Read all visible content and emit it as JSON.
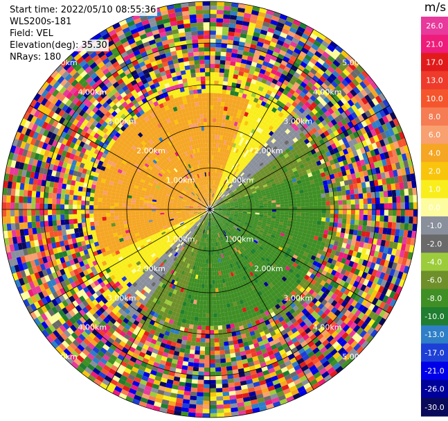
{
  "info": {
    "start_time": "Start time: 2022/05/10 08:55:36",
    "instrument": "WLS200s-181",
    "field": "Field: VEL",
    "elevation": "Elevation(deg): 35.30",
    "nrays": "NRays: 180"
  },
  "chart_data": {
    "type": "heatmap",
    "projection": "polar-ppi",
    "field": "VEL",
    "units": "m/s",
    "range_rings_km": [
      1.0,
      2.0,
      3.0,
      4.0,
      5.0
    ],
    "ring_labels": [
      "1.00km",
      "2.00km",
      "3.00km",
      "4.00km",
      "5.00km"
    ],
    "max_range_km": 5.0,
    "spoke_angles_deg": [
      0,
      30,
      60,
      90,
      120,
      150,
      180,
      210,
      240,
      270,
      300,
      330
    ],
    "nrays": 180,
    "colorbar": {
      "ticks": [
        "26.0",
        "21.0",
        "17.0",
        "13.0",
        "10.0",
        "8.0",
        "6.0",
        "4.0",
        "2.0",
        "1.0",
        "0.0",
        "-1.0",
        "-2.0",
        "-4.0",
        "-6.0",
        "-8.0",
        "-10.0",
        "-13.0",
        "-17.0",
        "-21.0",
        "-26.0",
        "-30.0"
      ],
      "colors": [
        "#e8399c",
        "#ee1c7a",
        "#e11b1b",
        "#ee3b2c",
        "#f5552d",
        "#f67c54",
        "#f8a070",
        "#f5a623",
        "#f9c40c",
        "#f9ee1c",
        "#fdfd9f",
        "#8a8f9c",
        "#6a6a6a",
        "#9ccc3b",
        "#6e8f2a",
        "#3f8f25",
        "#1f7e2f",
        "#2e7fc7",
        "#1d3fd6",
        "#0000e8",
        "#00009b",
        "#0a0a5a"
      ]
    }
  }
}
